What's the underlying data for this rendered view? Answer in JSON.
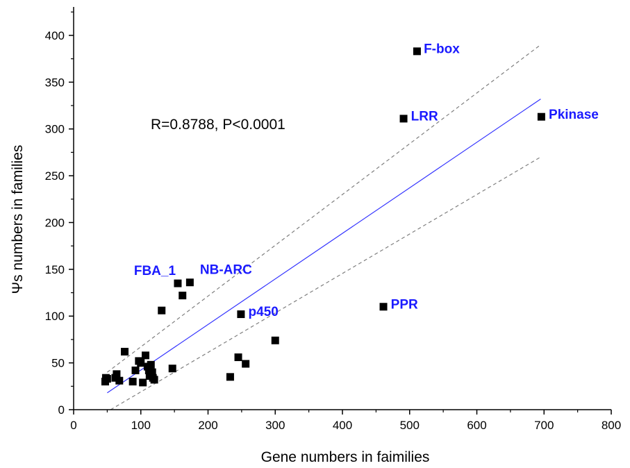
{
  "chart_data": {
    "type": "scatter",
    "xlabel": "Gene numbers in faimilies",
    "ylabel": "Ψs numbers in families",
    "xlim": [
      0,
      800
    ],
    "ylim": [
      0,
      420
    ],
    "xticks": [
      0,
      100,
      200,
      300,
      400,
      500,
      600,
      700,
      800
    ],
    "yticks": [
      0,
      50,
      100,
      150,
      200,
      250,
      300,
      350,
      400
    ],
    "annotation": "R=0.8788, P<0.0001",
    "grid": false,
    "marker_color": "#000000",
    "label_color": "#1a1aff",
    "fit_line_color": "#3333ff",
    "confidence_line_color": "#7f7f7f",
    "fit_line": {
      "x": [
        50,
        695
      ],
      "y": [
        18,
        332
      ]
    },
    "confidence_band_upper": {
      "x": [
        50,
        695
      ],
      "y": [
        40,
        390
      ]
    },
    "confidence_band_lower": {
      "x": [
        55,
        695
      ],
      "y": [
        0,
        270
      ]
    },
    "points": [
      {
        "x": 47,
        "y": 30
      },
      {
        "x": 48,
        "y": 34
      },
      {
        "x": 50,
        "y": 33
      },
      {
        "x": 62,
        "y": 34
      },
      {
        "x": 64,
        "y": 38
      },
      {
        "x": 68,
        "y": 31
      },
      {
        "x": 76,
        "y": 62
      },
      {
        "x": 88,
        "y": 30
      },
      {
        "x": 92,
        "y": 42
      },
      {
        "x": 97,
        "y": 52
      },
      {
        "x": 100,
        "y": 50
      },
      {
        "x": 103,
        "y": 29
      },
      {
        "x": 107,
        "y": 58
      },
      {
        "x": 110,
        "y": 46
      },
      {
        "x": 112,
        "y": 42
      },
      {
        "x": 113,
        "y": 36
      },
      {
        "x": 115,
        "y": 48
      },
      {
        "x": 117,
        "y": 40
      },
      {
        "x": 118,
        "y": 34
      },
      {
        "x": 120,
        "y": 32
      },
      {
        "x": 131,
        "y": 106
      },
      {
        "x": 147,
        "y": 44
      },
      {
        "x": 155,
        "y": 135
      },
      {
        "x": 162,
        "y": 122
      },
      {
        "x": 173,
        "y": 136
      },
      {
        "x": 233,
        "y": 35
      },
      {
        "x": 245,
        "y": 56
      },
      {
        "x": 249,
        "y": 102
      },
      {
        "x": 256,
        "y": 49
      },
      {
        "x": 300,
        "y": 74
      },
      {
        "x": 461,
        "y": 110
      },
      {
        "x": 491,
        "y": 311
      },
      {
        "x": 511,
        "y": 383
      },
      {
        "x": 696,
        "y": 313
      }
    ],
    "labels": [
      {
        "text": "F-box",
        "x": 521,
        "y": 381,
        "anchor": "start"
      },
      {
        "text": "LRR",
        "x": 502,
        "y": 309,
        "anchor": "start"
      },
      {
        "text": "Pkinase",
        "x": 707,
        "y": 311,
        "anchor": "start"
      },
      {
        "text": "PPR",
        "x": 472,
        "y": 108,
        "anchor": "start"
      },
      {
        "text": "p450",
        "x": 260,
        "y": 100,
        "anchor": "start"
      },
      {
        "text": "FBA_1",
        "x": 152,
        "y": 144,
        "anchor": "end"
      },
      {
        "text": "NB-ARC",
        "x": 188,
        "y": 145,
        "anchor": "start"
      }
    ]
  }
}
